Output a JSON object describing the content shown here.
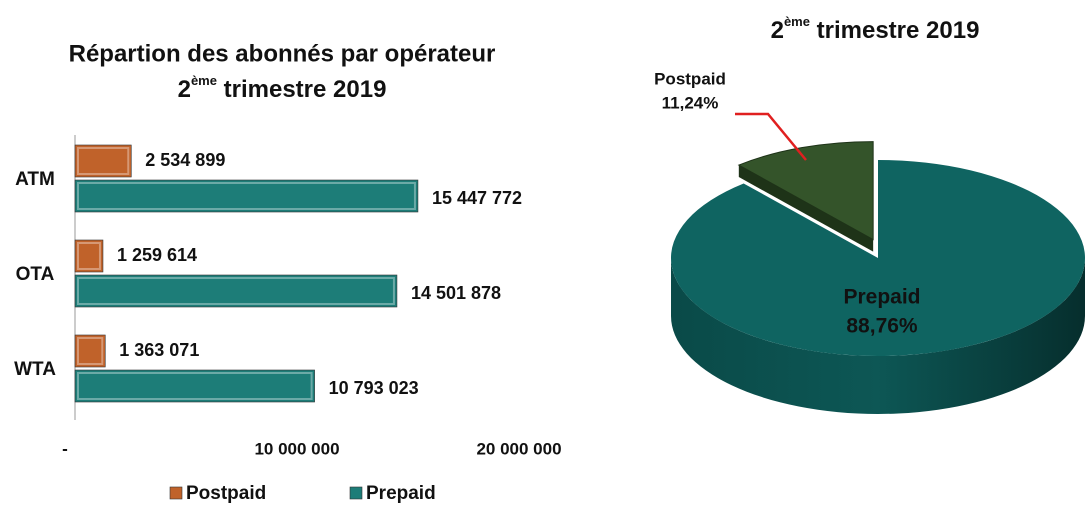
{
  "chart_data": [
    {
      "type": "bar",
      "orientation": "horizontal",
      "title": "Répartion des abonnés par opérateur",
      "subtitle": [
        "2",
        "ème",
        "trimestre 2019"
      ],
      "categories": [
        "ATM",
        "OTA",
        "WTA"
      ],
      "series": [
        {
          "name": "Postpaid",
          "color": "#c0622a",
          "values": [
            2534899,
            1259614,
            1363071
          ],
          "value_labels": [
            "2 534 899",
            "1 259 614",
            "1 363 071"
          ]
        },
        {
          "name": "Prepaid",
          "color": "#1d7d78",
          "values": [
            15447772,
            14501878,
            10793023
          ],
          "value_labels": [
            "15 447 772",
            "14 501 878",
            "10 793 023"
          ]
        }
      ],
      "xlim": [
        0,
        20000000
      ],
      "xticks": [
        {
          "value": 0,
          "label": "-"
        },
        {
          "value": 10000000,
          "label": "10 000 000"
        },
        {
          "value": 20000000,
          "label": "20 000 000"
        }
      ],
      "legend": "bottom"
    },
    {
      "type": "pie",
      "three_d": true,
      "title": [
        "2",
        "ème",
        "trimestre 2019"
      ],
      "categories": [
        "Prepaid",
        "Postpaid"
      ],
      "values": [
        88.76,
        11.24
      ],
      "value_labels": [
        "88,76%",
        "11,24%"
      ],
      "colors": [
        "#0f6461",
        "#34542a"
      ],
      "exploded": "Postpaid"
    }
  ]
}
